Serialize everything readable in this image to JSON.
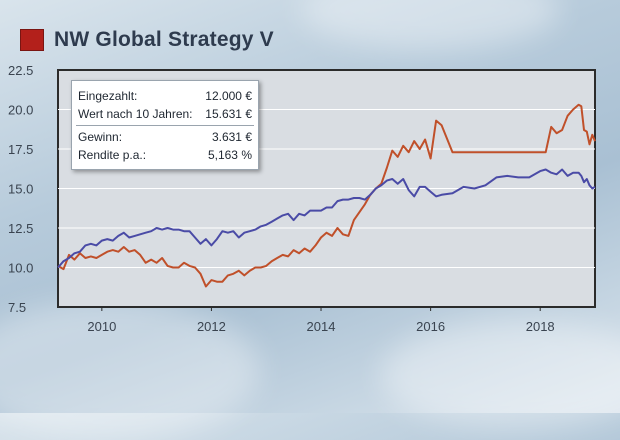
{
  "header": {
    "title": "NW Global Strategy V"
  },
  "colors": {
    "title_box": "#b3201b",
    "series_fund": "#c0502a",
    "series_benchmark": "#4a4ba6"
  },
  "infobox": {
    "rows": [
      {
        "label": "Eingezahlt:",
        "value": "12.000 €"
      },
      {
        "label": "Wert nach 10 Jahren:",
        "value": "15.631 €"
      },
      {
        "label": "Gewinn:",
        "value": "3.631 €"
      },
      {
        "label": "Rendite p.a.:",
        "value": "5,163 %"
      }
    ]
  },
  "chart_data": {
    "type": "line",
    "ylim": [
      7.5,
      22.5
    ],
    "xlim": [
      2009.2,
      2019.0
    ],
    "yticks": [
      "7.5",
      "10.0",
      "12.5",
      "15.0",
      "17.5",
      "20.0",
      "22.5"
    ],
    "xticks": [
      "2010",
      "2012",
      "2014",
      "2016",
      "2018"
    ],
    "grid": true,
    "series": [
      {
        "color": "#c0502a",
        "x": [
          2009.2,
          2009.3,
          2009.4,
          2009.5,
          2009.6,
          2009.7,
          2009.8,
          2009.9,
          2010.0,
          2010.1,
          2010.2,
          2010.3,
          2010.4,
          2010.5,
          2010.6,
          2010.7,
          2010.8,
          2010.9,
          2011.0,
          2011.1,
          2011.2,
          2011.3,
          2011.4,
          2011.5,
          2011.6,
          2011.7,
          2011.8,
          2011.9,
          2012.0,
          2012.1,
          2012.2,
          2012.3,
          2012.4,
          2012.5,
          2012.6,
          2012.7,
          2012.8,
          2012.9,
          2013.0,
          2013.1,
          2013.2,
          2013.3,
          2013.4,
          2013.5,
          2013.6,
          2013.7,
          2013.8,
          2013.9,
          2014.0,
          2014.1,
          2014.2,
          2014.3,
          2014.4,
          2014.5,
          2014.6,
          2014.7,
          2014.8,
          2014.9,
          2015.0,
          2015.1,
          2015.2,
          2015.3,
          2015.4,
          2015.5,
          2015.6,
          2015.7,
          2015.8,
          2015.9,
          2016.0,
          2016.1,
          2016.2,
          2016.4,
          2016.6,
          2016.8,
          2017.0,
          2017.2,
          2017.4,
          2017.6,
          2017.8,
          2018.0,
          2018.1,
          2018.2,
          2018.3,
          2018.4,
          2018.5,
          2018.6,
          2018.7,
          2018.75,
          2018.8,
          2018.85,
          2018.9,
          2018.95,
          2019.0
        ],
        "values": [
          10.1,
          9.9,
          10.8,
          10.5,
          10.9,
          10.6,
          10.7,
          10.6,
          10.8,
          11.0,
          11.1,
          11.0,
          11.3,
          11.0,
          11.1,
          10.8,
          10.3,
          10.5,
          10.3,
          10.6,
          10.1,
          10.0,
          10.0,
          10.3,
          10.1,
          10.0,
          9.6,
          8.8,
          9.2,
          9.1,
          9.1,
          9.5,
          9.6,
          9.8,
          9.5,
          9.8,
          10.0,
          10.0,
          10.1,
          10.4,
          10.6,
          10.8,
          10.7,
          11.1,
          10.9,
          11.2,
          11.0,
          11.4,
          11.9,
          12.2,
          12.0,
          12.5,
          12.1,
          12.0,
          13.0,
          13.5,
          14.0,
          14.6,
          15.0,
          15.3,
          16.3,
          17.4,
          17.0,
          17.7,
          17.3,
          18.0,
          17.5,
          18.1,
          16.9,
          19.3,
          19.0,
          17.3,
          17.3,
          17.3,
          17.3,
          17.3,
          17.3,
          17.3,
          17.3,
          17.3,
          17.3,
          18.9,
          18.5,
          18.7,
          19.6,
          20.0,
          20.3,
          20.2,
          18.7,
          18.6,
          17.8,
          18.4,
          18.0
        ]
      },
      {
        "color": "#4a4ba6",
        "x": [
          2009.2,
          2009.3,
          2009.4,
          2009.5,
          2009.6,
          2009.7,
          2009.8,
          2009.9,
          2010.0,
          2010.1,
          2010.2,
          2010.3,
          2010.4,
          2010.5,
          2010.6,
          2010.7,
          2010.8,
          2010.9,
          2011.0,
          2011.1,
          2011.2,
          2011.3,
          2011.4,
          2011.5,
          2011.6,
          2011.7,
          2011.8,
          2011.9,
          2012.0,
          2012.1,
          2012.2,
          2012.3,
          2012.4,
          2012.5,
          2012.6,
          2012.7,
          2012.8,
          2012.9,
          2013.0,
          2013.1,
          2013.2,
          2013.3,
          2013.4,
          2013.5,
          2013.6,
          2013.7,
          2013.8,
          2013.9,
          2014.0,
          2014.1,
          2014.2,
          2014.3,
          2014.4,
          2014.5,
          2014.6,
          2014.7,
          2014.8,
          2014.9,
          2015.0,
          2015.1,
          2015.2,
          2015.3,
          2015.4,
          2015.5,
          2015.6,
          2015.7,
          2015.8,
          2015.9,
          2016.0,
          2016.1,
          2016.2,
          2016.4,
          2016.6,
          2016.8,
          2017.0,
          2017.2,
          2017.4,
          2017.6,
          2017.8,
          2018.0,
          2018.1,
          2018.2,
          2018.3,
          2018.4,
          2018.5,
          2018.6,
          2018.7,
          2018.75,
          2018.8,
          2018.85,
          2018.9,
          2018.95,
          2019.0
        ],
        "values": [
          10.0,
          10.4,
          10.6,
          10.9,
          11.0,
          11.4,
          11.5,
          11.4,
          11.7,
          11.8,
          11.7,
          12.0,
          12.2,
          11.9,
          12.0,
          12.1,
          12.2,
          12.3,
          12.5,
          12.4,
          12.5,
          12.4,
          12.4,
          12.3,
          12.3,
          11.9,
          11.5,
          11.8,
          11.4,
          11.8,
          12.3,
          12.2,
          12.3,
          11.9,
          12.2,
          12.3,
          12.4,
          12.6,
          12.7,
          12.9,
          13.1,
          13.3,
          13.4,
          13.0,
          13.4,
          13.3,
          13.6,
          13.6,
          13.6,
          13.8,
          13.8,
          14.2,
          14.3,
          14.3,
          14.4,
          14.4,
          14.3,
          14.6,
          15.0,
          15.2,
          15.5,
          15.6,
          15.3,
          15.6,
          14.9,
          14.5,
          15.1,
          15.1,
          14.8,
          14.5,
          14.6,
          14.7,
          15.1,
          15.0,
          15.2,
          15.7,
          15.8,
          15.7,
          15.7,
          16.1,
          16.2,
          16.0,
          15.9,
          16.2,
          15.8,
          16.0,
          16.0,
          15.8,
          15.4,
          15.6,
          15.2,
          15.0,
          15.1
        ]
      }
    ]
  }
}
